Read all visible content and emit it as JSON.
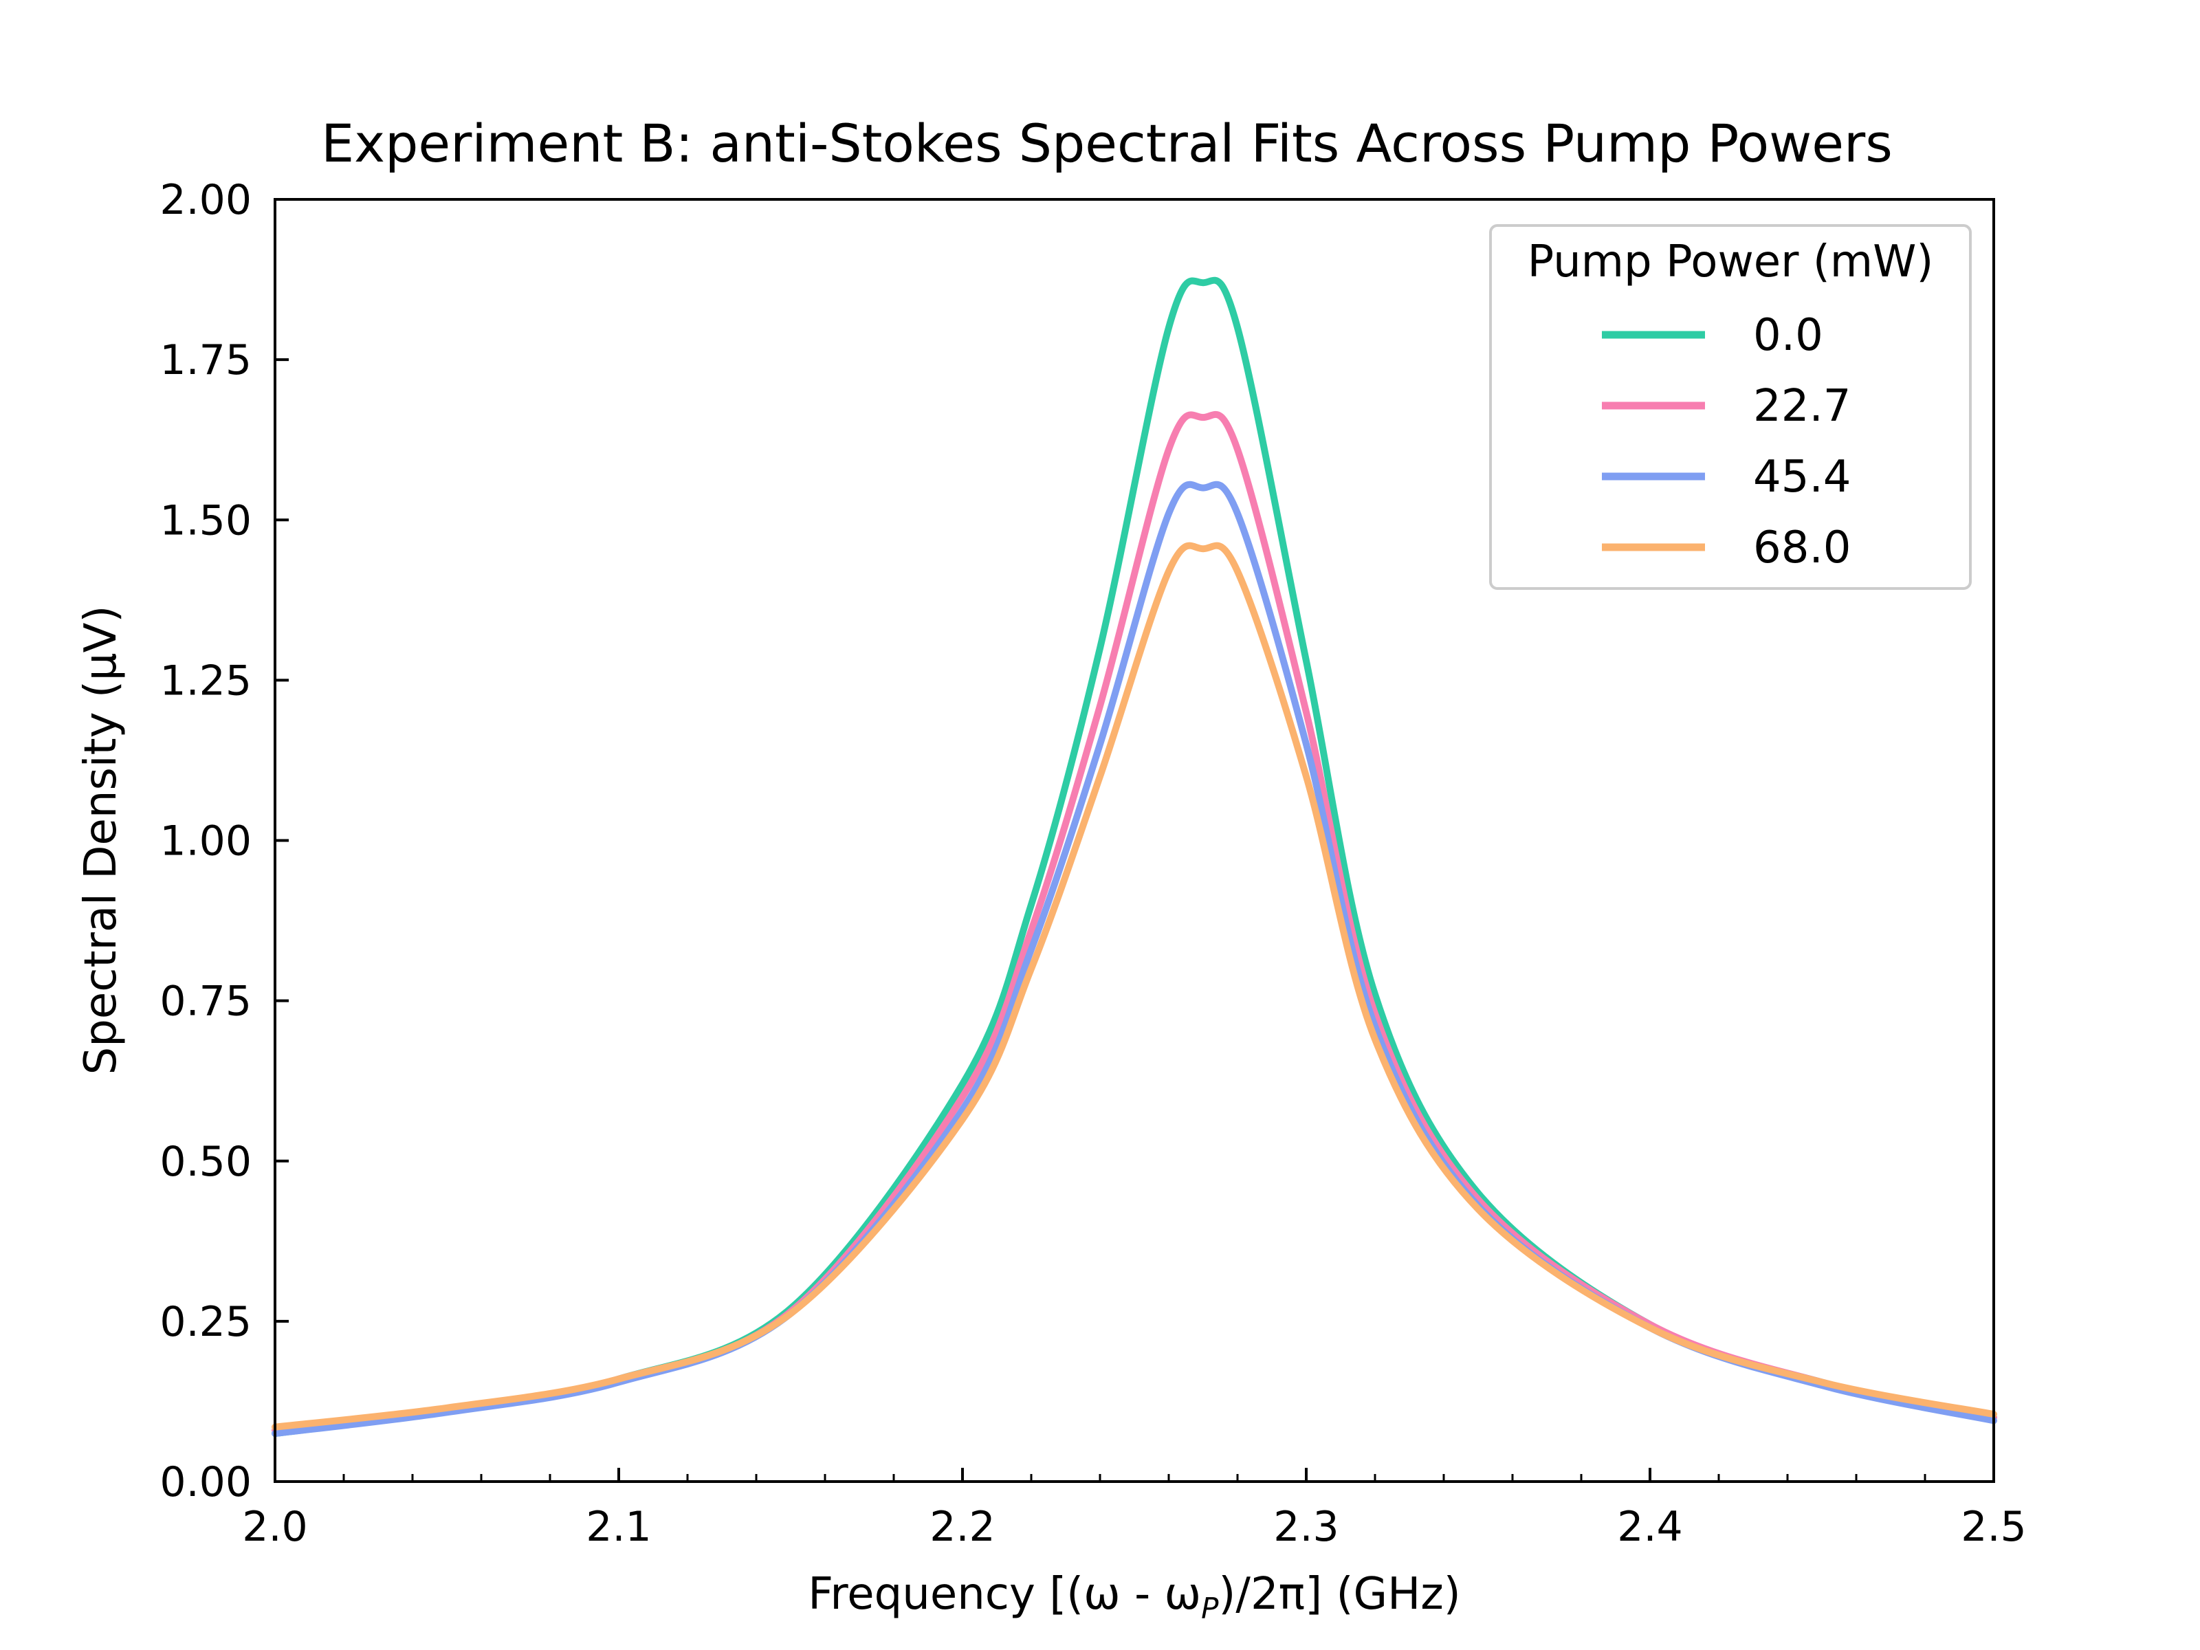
{
  "chart_data": {
    "type": "line",
    "title": "Experiment B: anti-Stokes Spectral Fits Across Pump Powers",
    "xlabel": "Frequency [(ω - ωP)/2π] (GHz)",
    "xlabel_parts": {
      "main": "Frequency [(ω - ω",
      "sub": "P",
      "tail": ")/2π] (GHz)"
    },
    "ylabel": "Spectral Density (μV)",
    "xlim": [
      2.0,
      2.5
    ],
    "ylim": [
      0.0,
      2.0
    ],
    "xticks": [
      "2.0",
      "2.1",
      "2.2",
      "2.3",
      "2.4",
      "2.5"
    ],
    "yticks": [
      "0.00",
      "0.25",
      "0.50",
      "0.75",
      "1.00",
      "1.25",
      "1.50",
      "1.75",
      "2.00"
    ],
    "grid": false,
    "legend": {
      "title": "Pump Power (mW)",
      "placement": "top-right"
    },
    "series": [
      {
        "name": "0.0",
        "color": "#2ecca4",
        "peak_x": 2.27,
        "values": [
          [
            2.0,
            0.075
          ],
          [
            2.05,
            0.11
          ],
          [
            2.1,
            0.16
          ],
          [
            2.15,
            0.27
          ],
          [
            2.2,
            0.62
          ],
          [
            2.22,
            0.9
          ],
          [
            2.24,
            1.3
          ],
          [
            2.26,
            1.8
          ],
          [
            2.27,
            1.87
          ],
          [
            2.28,
            1.8
          ],
          [
            2.3,
            1.28
          ],
          [
            2.32,
            0.76
          ],
          [
            2.35,
            0.45
          ],
          [
            2.4,
            0.245
          ],
          [
            2.45,
            0.155
          ],
          [
            2.5,
            0.1
          ]
        ]
      },
      {
        "name": "22.7",
        "color": "#f77eb0",
        "peak_x": 2.27,
        "values": [
          [
            2.0,
            0.08
          ],
          [
            2.05,
            0.112
          ],
          [
            2.1,
            0.16
          ],
          [
            2.15,
            0.265
          ],
          [
            2.2,
            0.6
          ],
          [
            2.22,
            0.86
          ],
          [
            2.24,
            1.21
          ],
          [
            2.26,
            1.61
          ],
          [
            2.27,
            1.66
          ],
          [
            2.28,
            1.61
          ],
          [
            2.3,
            1.2
          ],
          [
            2.32,
            0.73
          ],
          [
            2.35,
            0.44
          ],
          [
            2.4,
            0.245
          ],
          [
            2.45,
            0.155
          ],
          [
            2.5,
            0.1
          ]
        ]
      },
      {
        "name": "45.4",
        "color": "#7f9ef2",
        "peak_x": 2.27,
        "values": [
          [
            2.0,
            0.075
          ],
          [
            2.05,
            0.108
          ],
          [
            2.1,
            0.155
          ],
          [
            2.15,
            0.262
          ],
          [
            2.2,
            0.58
          ],
          [
            2.22,
            0.83
          ],
          [
            2.24,
            1.15
          ],
          [
            2.26,
            1.51
          ],
          [
            2.27,
            1.55
          ],
          [
            2.28,
            1.51
          ],
          [
            2.3,
            1.15
          ],
          [
            2.32,
            0.71
          ],
          [
            2.35,
            0.43
          ],
          [
            2.4,
            0.24
          ],
          [
            2.45,
            0.15
          ],
          [
            2.5,
            0.095
          ]
        ]
      },
      {
        "name": "68.0",
        "color": "#fbb26e",
        "peak_x": 2.27,
        "values": [
          [
            2.0,
            0.085
          ],
          [
            2.05,
            0.115
          ],
          [
            2.1,
            0.16
          ],
          [
            2.15,
            0.262
          ],
          [
            2.2,
            0.565
          ],
          [
            2.22,
            0.8
          ],
          [
            2.24,
            1.1
          ],
          [
            2.26,
            1.42
          ],
          [
            2.27,
            1.455
          ],
          [
            2.28,
            1.42
          ],
          [
            2.3,
            1.1
          ],
          [
            2.32,
            0.69
          ],
          [
            2.35,
            0.425
          ],
          [
            2.4,
            0.24
          ],
          [
            2.45,
            0.155
          ],
          [
            2.5,
            0.105
          ]
        ]
      }
    ]
  }
}
